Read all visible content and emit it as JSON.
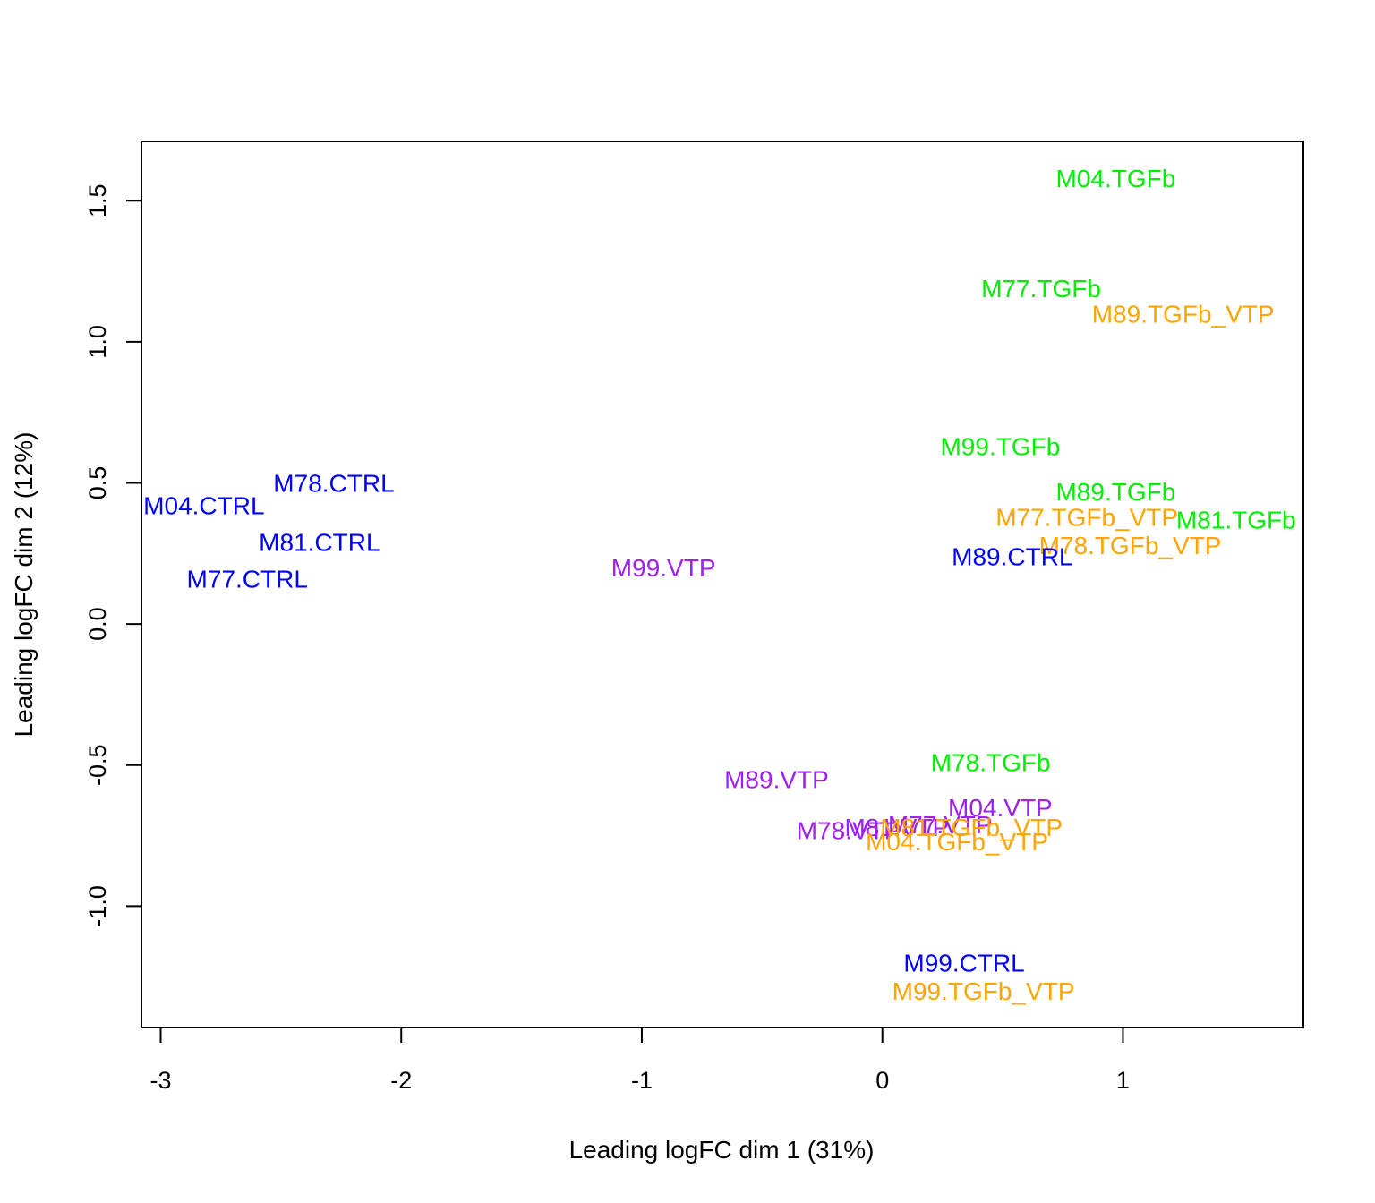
{
  "chart_data": {
    "type": "scatter",
    "title": "",
    "xlabel": "Leading logFC dim 1 (31%)",
    "ylabel": "Leading logFC dim 2 (12%)",
    "xlim": [
      -3.08,
      1.75
    ],
    "ylim": [
      -1.43,
      1.71
    ],
    "xticks": [
      -3,
      -2,
      -1,
      0,
      1
    ],
    "yticks": [
      -1.0,
      -0.5,
      0.0,
      0.5,
      1.0,
      1.5
    ],
    "xtick_labels": [
      "-3",
      "-2",
      "-1",
      "0",
      "1"
    ],
    "ytick_labels": [
      "-1.0",
      "-0.5",
      "0.0",
      "0.5",
      "1.0",
      "1.5"
    ],
    "grid": false,
    "legend": "none",
    "group_colors": {
      "CTRL": "#0000ff",
      "TGFb": "#00ee00",
      "TGFb_VTP": "#ffa500",
      "VTP": "#a020f0"
    },
    "points": [
      {
        "label": "M04.TGFb",
        "group": "TGFb",
        "x": 0.97,
        "y": 1.58
      },
      {
        "label": "M77.TGFb",
        "group": "TGFb",
        "x": 0.66,
        "y": 1.19
      },
      {
        "label": "M89.TGFb_VTP",
        "group": "TGFb_VTP",
        "x": 1.25,
        "y": 1.1
      },
      {
        "label": "M99.TGFb",
        "group": "TGFb",
        "x": 0.49,
        "y": 0.63
      },
      {
        "label": "M89.TGFb",
        "group": "TGFb",
        "x": 0.97,
        "y": 0.47
      },
      {
        "label": "M77.TGFb_VTP",
        "group": "TGFb_VTP",
        "x": 0.85,
        "y": 0.38
      },
      {
        "label": "M81.TGFb",
        "group": "TGFb",
        "x": 1.47,
        "y": 0.37
      },
      {
        "label": "M78.TGFb_VTP",
        "group": "TGFb_VTP",
        "x": 1.03,
        "y": 0.28
      },
      {
        "label": "M89.CTRL",
        "group": "CTRL",
        "x": 0.54,
        "y": 0.24
      },
      {
        "label": "M78.CTRL",
        "group": "CTRL",
        "x": -2.28,
        "y": 0.5
      },
      {
        "label": "M04.CTRL",
        "group": "CTRL",
        "x": -2.82,
        "y": 0.42
      },
      {
        "label": "M81.CTRL",
        "group": "CTRL",
        "x": -2.34,
        "y": 0.29
      },
      {
        "label": "M77.CTRL",
        "group": "CTRL",
        "x": -2.64,
        "y": 0.16
      },
      {
        "label": "M99.VTP",
        "group": "VTP",
        "x": -0.91,
        "y": 0.2
      },
      {
        "label": "M78.TGFb",
        "group": "TGFb",
        "x": 0.45,
        "y": -0.49
      },
      {
        "label": "M89.VTP",
        "group": "VTP",
        "x": -0.44,
        "y": -0.55
      },
      {
        "label": "M04.VTP",
        "group": "VTP",
        "x": 0.49,
        "y": -0.65
      },
      {
        "label": "M78.VTP",
        "group": "VTP",
        "x": -0.14,
        "y": -0.73
      },
      {
        "label": "M81.VTP",
        "group": "VTP",
        "x": 0.06,
        "y": -0.72
      },
      {
        "label": "M77.VTP",
        "group": "VTP",
        "x": 0.24,
        "y": -0.71
      },
      {
        "label": "M81.TGFb_VTP",
        "group": "TGFb_VTP",
        "x": 0.37,
        "y": -0.72
      },
      {
        "label": "M04.TGFb_VTP",
        "group": "TGFb_VTP",
        "x": 0.31,
        "y": -0.77
      },
      {
        "label": "M99.CTRL",
        "group": "CTRL",
        "x": 0.34,
        "y": -1.2
      },
      {
        "label": "M99.TGFb_VTP",
        "group": "TGFb_VTP",
        "x": 0.42,
        "y": -1.3
      }
    ]
  }
}
